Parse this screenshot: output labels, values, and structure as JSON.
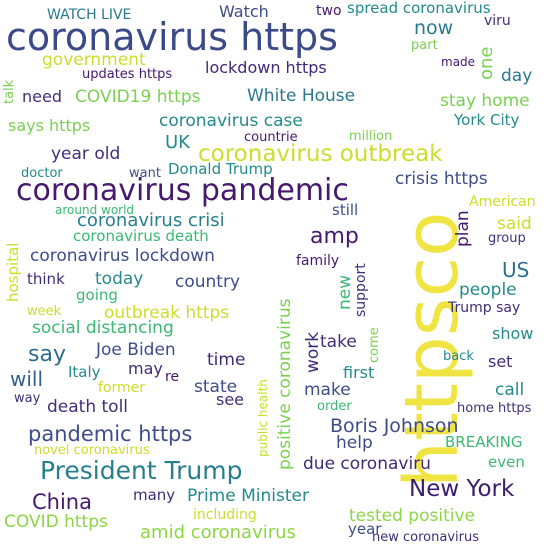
{
  "words": {
    "https_co": "httpsco",
    "coronavirus_https": "coronavirus https",
    "coronavirus_pandemic": "coronavirus pandemic",
    "coronavirus_outbreak": "coronavirus outbreak",
    "president_trump": "President Trump",
    "new_york": "New York",
    "pandemic_https": "pandemic https",
    "boris_johnson": "Boris Johnson",
    "china": "China",
    "amp": "amp",
    "say": "say",
    "us": "US",
    "will": "will",
    "government": "government",
    "lockdown_https": "lockdown https",
    "now": "now",
    "white_house": "White House",
    "covid19_https": "COVID19 https",
    "coronavirus_case": "coronavirus case",
    "coronavirus_crisi": "coronavirus crisi",
    "coronavirus_lockdown": "coronavirus lockdown",
    "social_distancing": "social distancing",
    "outbreak_https": "outbreak https",
    "joe_biden": "Joe Biden",
    "death_toll": "death toll",
    "due_coronaviru": "due coronaviru",
    "prime_minister": "Prime Minister",
    "amid_coronavirus": "amid coronavirus",
    "tested_positive": "tested positive",
    "covid_https": "COVID https",
    "watch_live": "WATCH LIVE",
    "watch": "Watch",
    "two": "two",
    "spread_coronavirus": "spread coronavirus",
    "viru": "viru",
    "one": "one",
    "part": "part",
    "made": "made",
    "day": "day",
    "talk": "talk",
    "updates_https": "updates https",
    "need": "need",
    "stay_home": "stay home",
    "york_city": "York City",
    "says_https": "says https",
    "uk": "UK",
    "million": "million",
    "countrie": "countrie",
    "year_old": "year old",
    "want": "want",
    "donald_trump": "Donald Trump",
    "crisis_https": "crisis https",
    "doctor": "doctor",
    "around_world": "around world",
    "still": "still",
    "american": "American",
    "plan": "plan",
    "said": "said",
    "group": "group",
    "hospital": "hospital",
    "coronavirus_death": "coronavirus death",
    "family": "family",
    "support": "support",
    "think": "think",
    "today": "today",
    "country": "country",
    "going": "going",
    "new": "new",
    "people": "people",
    "week": "week",
    "trump_say": "Trump say",
    "positive_coronavirus": "positive coronavirus",
    "work": "work",
    "take": "take",
    "show": "show",
    "public_health": "public health",
    "come": "come",
    "time": "time",
    "back": "back",
    "set": "set",
    "italy": "Italy",
    "may": "may",
    "re": "re",
    "first": "first",
    "former": "former",
    "state": "state",
    "make": "make",
    "call": "call",
    "way": "way",
    "see": "see",
    "order": "order",
    "home_https": "home https",
    "help": "help",
    "breaking": "BREAKING",
    "novel_coronavirus": "novel coronavirus",
    "even": "even",
    "many": "many",
    "including": "including",
    "year": "year",
    "new_coronavirus": "new coronavirus"
  }
}
